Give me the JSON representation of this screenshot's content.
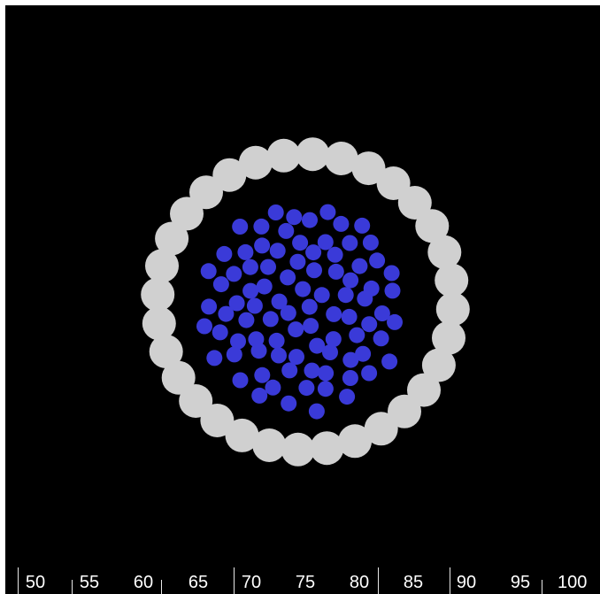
{
  "scene": {
    "background": "#000000",
    "ring": {
      "shape": "circle",
      "color": "#d0d0d0",
      "count": 32
    },
    "core": {
      "shape": "circle",
      "color": "#3a3ad8",
      "count": 88
    }
  },
  "ruler": {
    "line_color": "#e8e8e8",
    "text_color": "#ffffff",
    "labels": [
      "50",
      "55",
      "60",
      "65",
      "70",
      "75",
      "80",
      "85",
      "90",
      "95",
      "100"
    ]
  }
}
